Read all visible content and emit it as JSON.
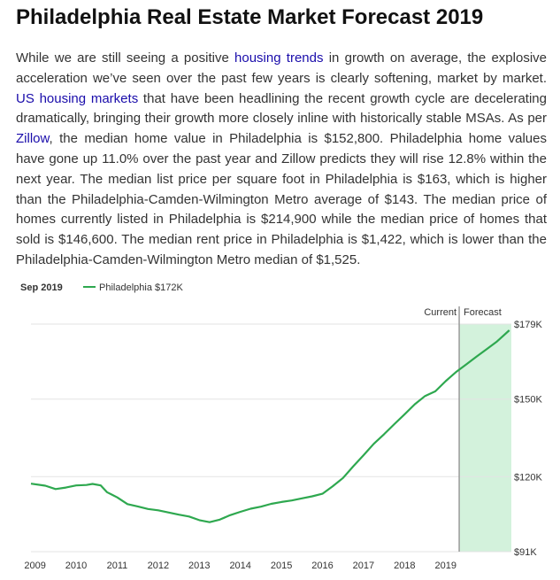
{
  "article": {
    "title": "Philadelphia Real Estate Market Forecast 2019",
    "segments": [
      {
        "text": "While we are still seeing a positive "
      },
      {
        "text": "housing trends",
        "link": true
      },
      {
        "text": " in growth on average, the explosive acceleration we’ve seen over the past few years is clearly softening, market by market. "
      },
      {
        "text": "US housing markets",
        "link": true
      },
      {
        "text": " that have been headlining the recent growth cycle are decelerating dramatically, bringing their growth more closely inline with historically stable MSAs. As per "
      },
      {
        "text": "Zillow",
        "link": true
      },
      {
        "text": ", the median home value in Philadelphia is $152,800. Philadelphia home values have gone up 11.0% over the past year and Zillow predicts they will rise 12.8% within the next year. The median list price per square foot in Philadelphia is $163, which is higher than the Philadelphia-Camden-Wilmington Metro average of $143. The median price of homes currently listed in Philadelphia is $214,900 while the median price of homes that sold is $146,600. The median rent price in Philadelphia is $1,422, which is lower than the Philadelphia-Camden-Wilmington Metro median of $1,525."
      }
    ]
  },
  "colors": {
    "link": "#1a0dab",
    "line": "#2ea84f",
    "forecast_band": "#d3f2dc",
    "grid": "#e3e3e3",
    "divider": "#9a9a9a",
    "text": "#333333"
  },
  "chart_data": {
    "type": "line",
    "legend_date": "Sep 2019",
    "series": [
      {
        "name": "Philadelphia $172K",
        "x": [
          2008.9,
          2009.25,
          2009.5,
          2009.75,
          2010.0,
          2010.25,
          2010.4,
          2010.6,
          2010.75,
          2011.0,
          2011.25,
          2011.5,
          2011.75,
          2012.0,
          2012.5,
          2012.75,
          2013.0,
          2013.25,
          2013.5,
          2013.75,
          2014.0,
          2014.25,
          2014.5,
          2014.75,
          2015.0,
          2015.25,
          2015.5,
          2015.75,
          2016.0,
          2016.25,
          2016.5,
          2016.75,
          2017.0,
          2017.25,
          2017.5,
          2017.75,
          2018.0,
          2018.25,
          2018.5,
          2018.75,
          2019.0,
          2019.25,
          2019.5,
          2019.75,
          2020.0,
          2020.25,
          2020.55
        ],
        "y": [
          117.3,
          116.5,
          115.2,
          115.8,
          116.6,
          116.8,
          117.2,
          116.6,
          114.0,
          112.0,
          109.4,
          108.5,
          107.5,
          107.0,
          105.3,
          104.6,
          103.2,
          102.4,
          103.4,
          105.1,
          106.4,
          107.6,
          108.4,
          109.5,
          110.2,
          110.8,
          111.6,
          112.4,
          113.4,
          116.3,
          119.5,
          124.0,
          128.3,
          132.7,
          136.4,
          140.3,
          144.1,
          148.0,
          151.2,
          153.0,
          156.9,
          160.4,
          163.4,
          166.4,
          169.3,
          172.3,
          176.6
        ]
      }
    ],
    "x_ticks": [
      "2009",
      "2010",
      "2011",
      "2012",
      "2013",
      "2014",
      "2015",
      "2016",
      "2017",
      "2018",
      "2019"
    ],
    "y_ticks": [
      "$179K",
      "$150K",
      "$120K",
      "$91K"
    ],
    "y_tick_values": [
      179,
      150,
      120,
      91
    ],
    "xlim": [
      2008.9,
      2020.6
    ],
    "ylim": [
      91,
      179
    ],
    "forecast_start": 2019.33,
    "region_labels": {
      "current": "Current",
      "forecast": "Forecast"
    },
    "grid": true,
    "legend_position": "top-left"
  }
}
